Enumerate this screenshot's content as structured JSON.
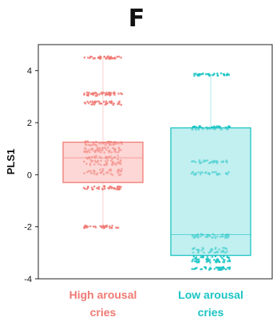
{
  "panel": {
    "letter": "F"
  },
  "colors": {
    "high": "#f07a74",
    "high_fill": "#f9b6b3",
    "low": "#1cc4c4",
    "low_fill": "#8fe1e3",
    "axis": "#222222"
  },
  "chart_data": {
    "type": "box",
    "ylabel": "PLS1",
    "ylim": [
      -4,
      5
    ],
    "yticks": [
      -4,
      -2,
      0,
      2,
      4
    ],
    "categories": [
      {
        "line1": "High arousal",
        "line2": "cries",
        "color_key": "high"
      },
      {
        "line1": "Low arousal",
        "line2": "cries",
        "color_key": "low"
      }
    ],
    "boxes": [
      {
        "q1": -0.3,
        "median": 0.65,
        "q3": 1.25,
        "whisker_low": -2.0,
        "whisker_high": 4.5
      },
      {
        "q1": -3.1,
        "median": -2.3,
        "q3": 1.8,
        "whisker_low": -3.6,
        "whisker_high": 3.9
      }
    ],
    "point_clusters": [
      [
        {
          "y": 4.5,
          "n": 40,
          "spread": 0.05
        },
        {
          "y": 3.1,
          "n": 45,
          "spread": 0.07
        },
        {
          "y": 2.75,
          "n": 40,
          "spread": 0.07
        },
        {
          "y": 1.2,
          "n": 45,
          "spread": 0.08
        },
        {
          "y": 0.95,
          "n": 50,
          "spread": 0.1
        },
        {
          "y": 0.55,
          "n": 60,
          "spread": 0.18
        },
        {
          "y": 0.1,
          "n": 40,
          "spread": 0.12
        },
        {
          "y": -0.5,
          "n": 40,
          "spread": 0.07
        },
        {
          "y": -2.0,
          "n": 35,
          "spread": 0.05
        }
      ],
      [
        {
          "y": 3.85,
          "n": 35,
          "spread": 0.05
        },
        {
          "y": 1.8,
          "n": 50,
          "spread": 0.07
        },
        {
          "y": 0.5,
          "n": 30,
          "spread": 0.06
        },
        {
          "y": 0.05,
          "n": 30,
          "spread": 0.06
        },
        {
          "y": -2.35,
          "n": 45,
          "spread": 0.08
        },
        {
          "y": -2.9,
          "n": 40,
          "spread": 0.1
        },
        {
          "y": -3.25,
          "n": 60,
          "spread": 0.12
        },
        {
          "y": -3.6,
          "n": 40,
          "spread": 0.06
        }
      ]
    ]
  }
}
